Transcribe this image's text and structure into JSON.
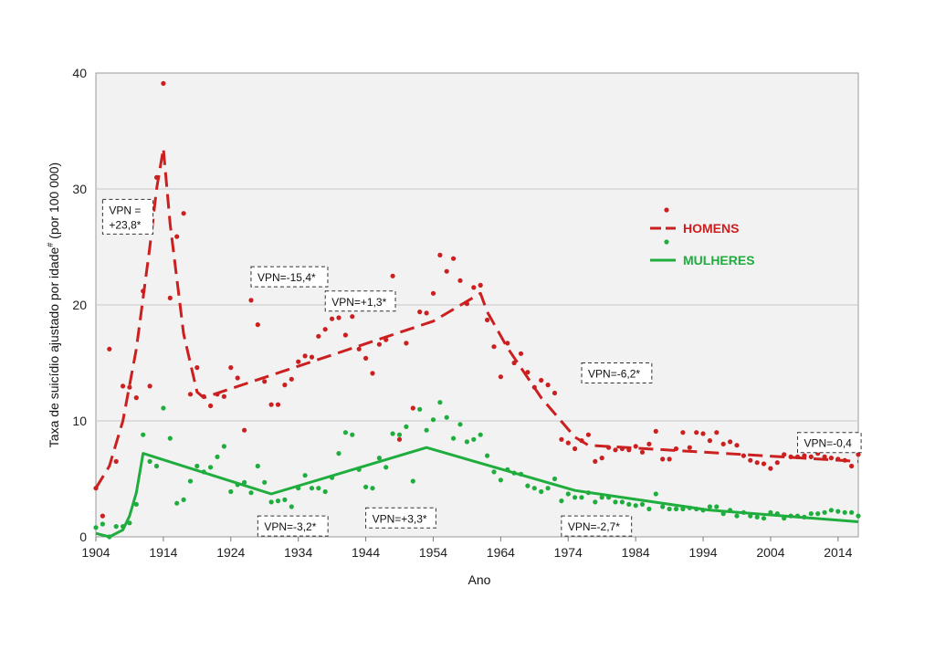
{
  "chart_data": {
    "type": "line",
    "title": "",
    "xlabel": "Ano",
    "ylabel": "Taxa de suicídio ajustado por idade",
    "ylabel_sup": "#",
    "ylabel_suffix": " (por 100 000)",
    "xlim": [
      1904,
      2017
    ],
    "ylim": [
      0,
      40
    ],
    "xticks": [
      1904,
      1914,
      1924,
      1934,
      1944,
      1954,
      1964,
      1974,
      1984,
      1994,
      2004,
      2014
    ],
    "yticks": [
      0,
      10,
      20,
      30,
      40
    ],
    "grid": "horizontal",
    "legend_position": "right",
    "series": [
      {
        "name": "HOMENS",
        "color": "#cc1f1f",
        "line_style": "dashed",
        "points": [
          [
            1904,
            4.2
          ],
          [
            1905,
            1.8
          ],
          [
            1906,
            16.2
          ],
          [
            1907,
            6.5
          ],
          [
            1908,
            13.0
          ],
          [
            1909,
            12.9
          ],
          [
            1910,
            12.0
          ],
          [
            1911,
            21.2
          ],
          [
            1912,
            13.0
          ],
          [
            1913,
            31.0
          ],
          [
            1914,
            39.1
          ],
          [
            1915,
            20.6
          ],
          [
            1916,
            25.9
          ],
          [
            1917,
            27.9
          ],
          [
            1918,
            12.3
          ],
          [
            1919,
            14.6
          ],
          [
            1920,
            12.1
          ],
          [
            1921,
            11.3
          ],
          [
            1922,
            12.3
          ],
          [
            1923,
            12.1
          ],
          [
            1924,
            14.6
          ],
          [
            1925,
            13.7
          ],
          [
            1926,
            9.2
          ],
          [
            1927,
            20.4
          ],
          [
            1928,
            18.3
          ],
          [
            1929,
            13.4
          ],
          [
            1930,
            11.4
          ],
          [
            1931,
            11.4
          ],
          [
            1932,
            13.1
          ],
          [
            1933,
            13.6
          ],
          [
            1934,
            15.1
          ],
          [
            1935,
            15.6
          ],
          [
            1936,
            15.5
          ],
          [
            1937,
            17.3
          ],
          [
            1938,
            17.9
          ],
          [
            1939,
            18.8
          ],
          [
            1940,
            18.9
          ],
          [
            1941,
            17.4
          ],
          [
            1942,
            19.0
          ],
          [
            1943,
            16.2
          ],
          [
            1944,
            15.4
          ],
          [
            1945,
            14.1
          ],
          [
            1946,
            16.6
          ],
          [
            1947,
            17.0
          ],
          [
            1948,
            22.5
          ],
          [
            1949,
            8.4
          ],
          [
            1950,
            16.7
          ],
          [
            1951,
            11.1
          ],
          [
            1952,
            19.4
          ],
          [
            1953,
            19.3
          ],
          [
            1954,
            21.0
          ],
          [
            1955,
            24.3
          ],
          [
            1956,
            22.9
          ],
          [
            1957,
            24.0
          ],
          [
            1958,
            22.1
          ],
          [
            1959,
            20.1
          ],
          [
            1960,
            21.5
          ],
          [
            1961,
            21.7
          ],
          [
            1962,
            18.7
          ],
          [
            1963,
            16.4
          ],
          [
            1964,
            13.8
          ],
          [
            1965,
            16.7
          ],
          [
            1966,
            15.0
          ],
          [
            1967,
            15.8
          ],
          [
            1968,
            14.2
          ],
          [
            1969,
            12.9
          ],
          [
            1970,
            13.5
          ],
          [
            1971,
            13.1
          ],
          [
            1972,
            12.4
          ],
          [
            1973,
            8.4
          ],
          [
            1974,
            8.1
          ],
          [
            1975,
            7.6
          ],
          [
            1976,
            8.3
          ],
          [
            1977,
            8.8
          ],
          [
            1978,
            6.5
          ],
          [
            1979,
            6.8
          ],
          [
            1980,
            7.7
          ],
          [
            1981,
            7.5
          ],
          [
            1982,
            7.6
          ],
          [
            1983,
            7.5
          ],
          [
            1984,
            7.8
          ],
          [
            1985,
            7.3
          ],
          [
            1986,
            8.0
          ],
          [
            1987,
            9.1
          ],
          [
            1988,
            6.7
          ],
          [
            1989,
            6.7
          ],
          [
            1990,
            7.6
          ],
          [
            1991,
            9.0
          ],
          [
            1992,
            7.7
          ],
          [
            1993,
            9.0
          ],
          [
            1994,
            8.9
          ],
          [
            1995,
            8.3
          ],
          [
            1996,
            9.0
          ],
          [
            1997,
            8.0
          ],
          [
            1998,
            8.2
          ],
          [
            1999,
            7.9
          ],
          [
            2000,
            7.0
          ],
          [
            2001,
            6.6
          ],
          [
            2002,
            6.4
          ],
          [
            2003,
            6.3
          ],
          [
            2004,
            5.9
          ],
          [
            2005,
            6.4
          ],
          [
            2006,
            7.1
          ],
          [
            2007,
            6.9
          ],
          [
            2008,
            6.9
          ],
          [
            2009,
            7.0
          ],
          [
            2010,
            6.9
          ],
          [
            2011,
            7.2
          ],
          [
            2012,
            6.9
          ],
          [
            2013,
            6.8
          ],
          [
            2014,
            6.7
          ],
          [
            2015,
            6.6
          ],
          [
            2016,
            6.1
          ],
          [
            2017,
            7.1
          ]
        ],
        "trend": [
          [
            1904,
            4.2
          ],
          [
            1906,
            6.1
          ],
          [
            1908,
            10.0
          ],
          [
            1910,
            16.2
          ],
          [
            1912,
            25.0
          ],
          [
            1913,
            30.0
          ],
          [
            1914,
            33.5
          ],
          [
            1915,
            27.0
          ],
          [
            1917,
            17.5
          ],
          [
            1919,
            12.5
          ],
          [
            1920,
            12.0
          ],
          [
            1954,
            18.6
          ],
          [
            1961,
            21.0
          ],
          [
            1962,
            19.4
          ],
          [
            1965,
            16.3
          ],
          [
            1970,
            12.0
          ],
          [
            1975,
            8.6
          ],
          [
            1977,
            7.9
          ],
          [
            2017,
            6.5
          ]
        ]
      },
      {
        "name": "MULHERES",
        "color": "#1fad3e",
        "line_style": "solid",
        "points": [
          [
            1904,
            0.8
          ],
          [
            1905,
            1.1
          ],
          [
            1906,
            0.0
          ],
          [
            1907,
            0.9
          ],
          [
            1908,
            0.9
          ],
          [
            1909,
            1.2
          ],
          [
            1910,
            2.8
          ],
          [
            1911,
            8.8
          ],
          [
            1912,
            6.5
          ],
          [
            1913,
            6.1
          ],
          [
            1914,
            11.1
          ],
          [
            1915,
            8.5
          ],
          [
            1916,
            2.9
          ],
          [
            1917,
            3.2
          ],
          [
            1918,
            4.8
          ],
          [
            1919,
            6.1
          ],
          [
            1920,
            5.6
          ],
          [
            1921,
            6.0
          ],
          [
            1922,
            6.9
          ],
          [
            1923,
            7.8
          ],
          [
            1924,
            3.9
          ],
          [
            1925,
            4.5
          ],
          [
            1926,
            4.7
          ],
          [
            1927,
            3.8
          ],
          [
            1928,
            6.1
          ],
          [
            1929,
            4.7
          ],
          [
            1930,
            3.0
          ],
          [
            1931,
            3.1
          ],
          [
            1932,
            3.2
          ],
          [
            1933,
            2.6
          ],
          [
            1934,
            4.2
          ],
          [
            1935,
            5.3
          ],
          [
            1936,
            4.2
          ],
          [
            1937,
            4.2
          ],
          [
            1938,
            3.9
          ],
          [
            1939,
            5.1
          ],
          [
            1940,
            7.2
          ],
          [
            1941,
            9.0
          ],
          [
            1942,
            8.8
          ],
          [
            1943,
            5.8
          ],
          [
            1944,
            4.3
          ],
          [
            1945,
            4.2
          ],
          [
            1946,
            6.8
          ],
          [
            1947,
            6.0
          ],
          [
            1948,
            8.9
          ],
          [
            1949,
            8.8
          ],
          [
            1950,
            9.5
          ],
          [
            1951,
            4.8
          ],
          [
            1952,
            11.0
          ],
          [
            1953,
            9.2
          ],
          [
            1954,
            10.1
          ],
          [
            1955,
            11.6
          ],
          [
            1956,
            10.3
          ],
          [
            1957,
            8.5
          ],
          [
            1958,
            9.7
          ],
          [
            1959,
            8.2
          ],
          [
            1960,
            8.4
          ],
          [
            1961,
            8.8
          ],
          [
            1962,
            7.0
          ],
          [
            1963,
            5.6
          ],
          [
            1964,
            4.9
          ],
          [
            1965,
            5.8
          ],
          [
            1966,
            5.5
          ],
          [
            1967,
            5.4
          ],
          [
            1968,
            4.4
          ],
          [
            1969,
            4.2
          ],
          [
            1970,
            3.9
          ],
          [
            1971,
            4.2
          ],
          [
            1972,
            5.0
          ],
          [
            1973,
            3.1
          ],
          [
            1974,
            3.7
          ],
          [
            1975,
            3.4
          ],
          [
            1976,
            3.4
          ],
          [
            1977,
            3.8
          ],
          [
            1978,
            3.0
          ],
          [
            1979,
            3.4
          ],
          [
            1980,
            3.4
          ],
          [
            1981,
            3.0
          ],
          [
            1982,
            3.0
          ],
          [
            1983,
            2.8
          ],
          [
            1984,
            2.7
          ],
          [
            1985,
            2.8
          ],
          [
            1986,
            2.4
          ],
          [
            1987,
            3.7
          ],
          [
            1988,
            2.6
          ],
          [
            1989,
            2.4
          ],
          [
            1990,
            2.4
          ],
          [
            1991,
            2.4
          ],
          [
            1992,
            2.5
          ],
          [
            1993,
            2.4
          ],
          [
            1994,
            2.3
          ],
          [
            1995,
            2.6
          ],
          [
            1996,
            2.6
          ],
          [
            1997,
            2.0
          ],
          [
            1998,
            2.3
          ],
          [
            1999,
            1.8
          ],
          [
            2000,
            2.1
          ],
          [
            2001,
            1.8
          ],
          [
            2002,
            1.7
          ],
          [
            2003,
            1.6
          ],
          [
            2004,
            2.1
          ],
          [
            2005,
            2.0
          ],
          [
            2006,
            1.6
          ],
          [
            2007,
            1.8
          ],
          [
            2008,
            1.8
          ],
          [
            2009,
            1.7
          ],
          [
            2010,
            2.0
          ],
          [
            2011,
            2.0
          ],
          [
            2012,
            2.1
          ],
          [
            2013,
            2.3
          ],
          [
            2014,
            2.2
          ],
          [
            2015,
            2.1
          ],
          [
            2016,
            2.1
          ],
          [
            2017,
            1.8
          ]
        ],
        "trend": [
          [
            1904,
            0.3
          ],
          [
            1906,
            0.0
          ],
          [
            1908,
            0.6
          ],
          [
            1909,
            1.8
          ],
          [
            1910,
            3.8
          ],
          [
            1911,
            7.2
          ],
          [
            1930,
            3.7
          ],
          [
            1953,
            7.7
          ],
          [
            1975,
            4.0
          ],
          [
            1995,
            2.3
          ],
          [
            2017,
            1.3
          ]
        ]
      }
    ],
    "annotations": [
      {
        "lines": [
          "VPN =",
          "+23,8*"
        ],
        "year": 1905,
        "value": 29.1
      },
      {
        "lines": [
          "VPN=-15,4*"
        ],
        "year": 1927,
        "value": 23.3
      },
      {
        "lines": [
          "VPN=+1,3*"
        ],
        "year": 1938,
        "value": 21.2
      },
      {
        "lines": [
          "VPN=-6,2*"
        ],
        "year": 1976,
        "value": 15.0
      },
      {
        "lines": [
          "VPN=-0,4"
        ],
        "year": 2008,
        "value": 9.0
      },
      {
        "lines": [
          "VPN=-3,2*"
        ],
        "year": 1928,
        "value": 1.8
      },
      {
        "lines": [
          "VPN=+3,3*"
        ],
        "year": 1944,
        "value": 2.5
      },
      {
        "lines": [
          "VPN=-2,7*"
        ],
        "year": 1973,
        "value": 1.8
      }
    ]
  }
}
